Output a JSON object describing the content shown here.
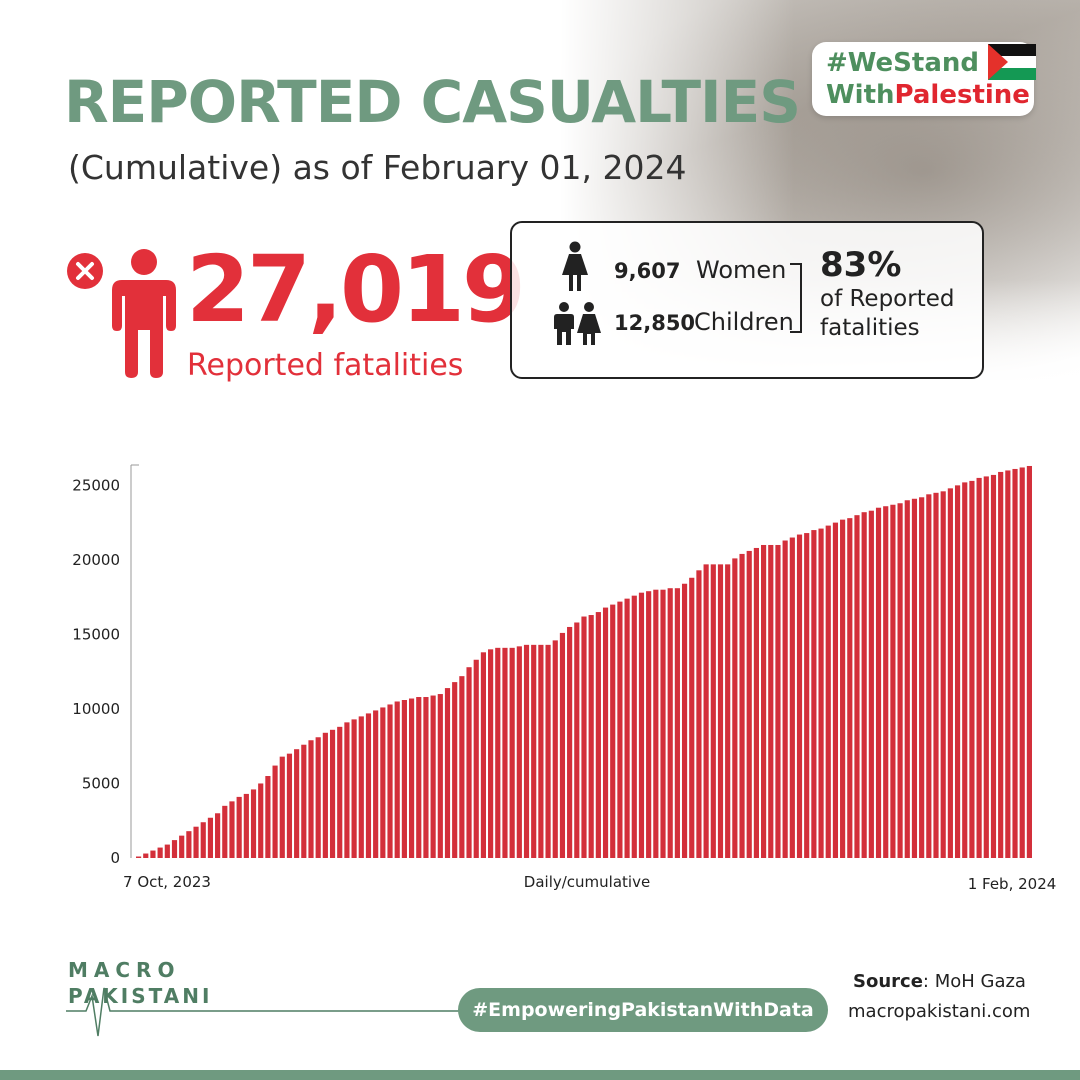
{
  "header": {
    "title": "REPORTED CASUALTIES",
    "subtitle": "(Cumulative) as of February 01, 2024",
    "hashtag_line1": "#WeStand",
    "hashtag_with": "With",
    "hashtag_palestine": "Palestine"
  },
  "fatalities": {
    "total": "27,019",
    "label": "Reported fatalities"
  },
  "breakdown": {
    "women_count": "9,607",
    "women_label": "Women",
    "children_count": "12,850",
    "children_label": "Children",
    "percent": "83%",
    "percent_label": "of Reported fatalities"
  },
  "footer": {
    "logo_line1": "MACRO",
    "logo_line2": "PAKISTANI",
    "tagline": "#EmpoweringPakistanWithData",
    "source_label": "Source",
    "source_value": ": MoH Gaza",
    "website": "macropakistani.com"
  },
  "colors": {
    "accent_green": "#6f9a80",
    "red": "#e2303a",
    "bar": "#d32f3a"
  },
  "chart_data": {
    "type": "bar",
    "title": "",
    "xlabel": "Daily/cumulative",
    "ylabel": "",
    "x_start_label": "7 Oct, 2023",
    "x_end_label": "1 Feb, 2024",
    "yticks": [
      0,
      5000,
      10000,
      15000,
      20000,
      25000
    ],
    "ylim": [
      0,
      26500
    ],
    "grid": false,
    "values": [
      100,
      300,
      500,
      700,
      900,
      1200,
      1500,
      1800,
      2100,
      2400,
      2700,
      3000,
      3500,
      3800,
      4100,
      4300,
      4600,
      5000,
      5500,
      6200,
      6800,
      7000,
      7300,
      7600,
      7900,
      8100,
      8400,
      8600,
      8800,
      9100,
      9300,
      9500,
      9700,
      9900,
      10100,
      10300,
      10500,
      10600,
      10700,
      10800,
      10800,
      10900,
      11000,
      11400,
      11800,
      12200,
      12800,
      13300,
      13800,
      14000,
      14100,
      14100,
      14100,
      14200,
      14300,
      14300,
      14300,
      14300,
      14600,
      15100,
      15500,
      15800,
      16200,
      16300,
      16500,
      16800,
      17000,
      17200,
      17400,
      17600,
      17800,
      17900,
      18000,
      18000,
      18100,
      18100,
      18400,
      18800,
      19300,
      19700,
      19700,
      19700,
      19700,
      20100,
      20400,
      20600,
      20800,
      21000,
      21000,
      21000,
      21300,
      21500,
      21700,
      21800,
      22000,
      22100,
      22300,
      22500,
      22700,
      22800,
      23000,
      23200,
      23300,
      23500,
      23600,
      23700,
      23800,
      24000,
      24100,
      24200,
      24400,
      24500,
      24600,
      24800,
      25000,
      25200,
      25300,
      25500,
      25600,
      25700,
      25900,
      26000,
      26100,
      26200,
      26300
    ]
  }
}
